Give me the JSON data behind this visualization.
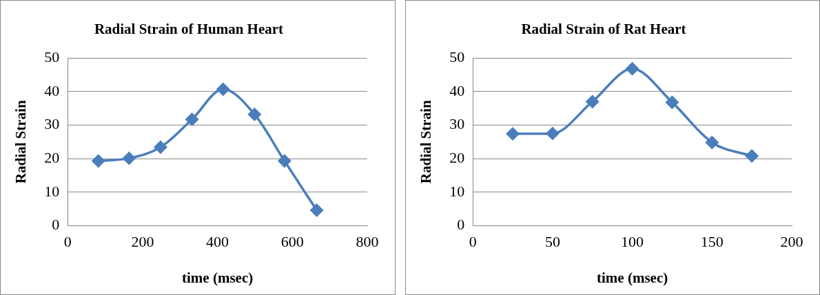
{
  "chart_data": [
    {
      "type": "line",
      "title": "Radial Strain of Human Heart",
      "xlabel": "time (msec)",
      "ylabel": "Radial Strain",
      "x": [
        82,
        164,
        248,
        332,
        415,
        499,
        579,
        665
      ],
      "series": [
        {
          "color": "#4a7ebb",
          "values": [
            19.3,
            20.1,
            23.4,
            31.7,
            40.7,
            33.2,
            19.3,
            4.6
          ]
        }
      ],
      "xlim": [
        0,
        800
      ],
      "xticks": [
        0,
        200,
        400,
        600,
        800
      ],
      "ylim": [
        0,
        50
      ],
      "yticks": [
        0,
        10,
        20,
        30,
        40,
        50
      ],
      "grid": "y",
      "marker": "diamond",
      "line_style": "solid",
      "legend": false
    },
    {
      "type": "line",
      "title": "Radial Strain of Rat Heart",
      "xlabel": "time (msec)",
      "ylabel": "Radial Strain",
      "x": [
        25,
        50,
        75,
        100,
        125,
        150,
        175
      ],
      "series": [
        {
          "color": "#4a7ebb",
          "values": [
            27.4,
            27.5,
            37.0,
            46.8,
            36.8,
            24.8,
            20.8
          ]
        }
      ],
      "xlim": [
        0,
        200
      ],
      "xticks": [
        0,
        50,
        100,
        150,
        200
      ],
      "ylim": [
        0,
        50
      ],
      "yticks": [
        0,
        10,
        20,
        30,
        40,
        50
      ],
      "grid": "y",
      "marker": "diamond",
      "line_style": "solid",
      "legend": false
    }
  ]
}
